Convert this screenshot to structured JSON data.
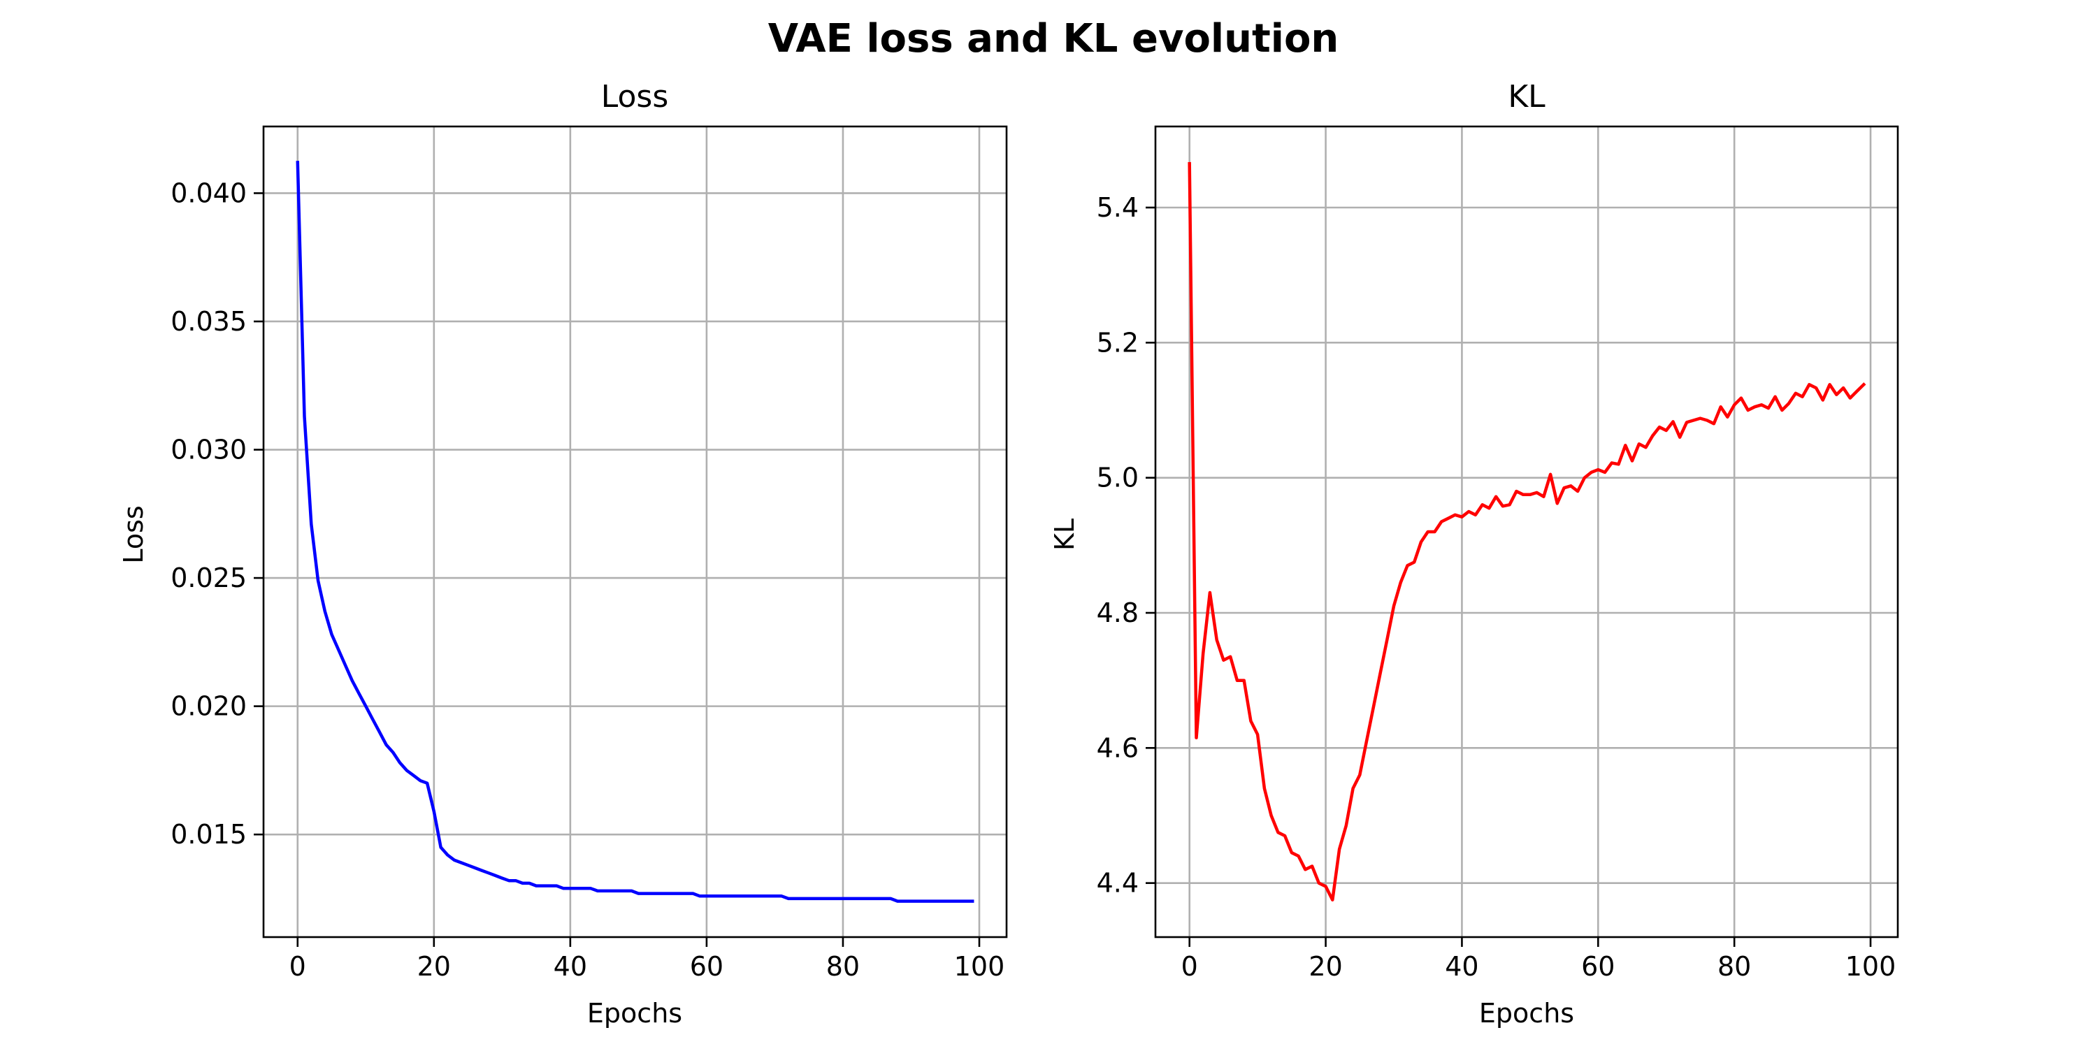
{
  "figure": {
    "suptitle": "VAE loss and KL evolution"
  },
  "chart_data": [
    {
      "type": "line",
      "title": "Loss",
      "xlabel": "Epochs",
      "ylabel": "Loss",
      "xlim": [
        -5,
        104
      ],
      "ylim": [
        0.011,
        0.0426
      ],
      "xticks": [
        0,
        20,
        40,
        60,
        80,
        100
      ],
      "yticks": [
        0.015,
        0.02,
        0.025,
        0.03,
        0.035,
        0.04
      ],
      "ytick_decimals": 3,
      "grid": true,
      "series": [
        {
          "color": "#0000ff",
          "x": [
            0,
            1,
            2,
            3,
            4,
            5,
            6,
            7,
            8,
            9,
            10,
            11,
            12,
            13,
            14,
            15,
            16,
            17,
            18,
            19,
            20,
            21,
            22,
            23,
            24,
            25,
            26,
            27,
            28,
            29,
            30,
            31,
            32,
            33,
            34,
            35,
            36,
            37,
            38,
            39,
            40,
            41,
            42,
            43,
            44,
            45,
            46,
            47,
            48,
            49,
            50,
            51,
            52,
            53,
            54,
            55,
            56,
            57,
            58,
            59,
            60,
            61,
            62,
            63,
            64,
            65,
            66,
            67,
            68,
            69,
            70,
            71,
            72,
            73,
            74,
            75,
            76,
            77,
            78,
            79,
            80,
            81,
            82,
            83,
            84,
            85,
            86,
            87,
            88,
            89,
            90,
            91,
            92,
            93,
            94,
            95,
            96,
            97,
            98,
            99
          ],
          "y": [
            0.0412,
            0.0313,
            0.0271,
            0.0249,
            0.0237,
            0.0228,
            0.0222,
            0.0216,
            0.021,
            0.0205,
            0.02,
            0.0195,
            0.019,
            0.0185,
            0.0182,
            0.0178,
            0.0175,
            0.0173,
            0.0171,
            0.017,
            0.0159,
            0.0145,
            0.0142,
            0.014,
            0.0139,
            0.0138,
            0.0137,
            0.0136,
            0.0135,
            0.0134,
            0.0133,
            0.0132,
            0.0132,
            0.0131,
            0.0131,
            0.013,
            0.013,
            0.013,
            0.013,
            0.0129,
            0.0129,
            0.0129,
            0.0129,
            0.0129,
            0.0128,
            0.0128,
            0.0128,
            0.0128,
            0.0128,
            0.0128,
            0.0127,
            0.0127,
            0.0127,
            0.0127,
            0.0127,
            0.0127,
            0.0127,
            0.0127,
            0.0127,
            0.0126,
            0.0126,
            0.0126,
            0.0126,
            0.0126,
            0.0126,
            0.0126,
            0.0126,
            0.0126,
            0.0126,
            0.0126,
            0.0126,
            0.0126,
            0.0125,
            0.0125,
            0.0125,
            0.0125,
            0.0125,
            0.0125,
            0.0125,
            0.0125,
            0.0125,
            0.0125,
            0.0125,
            0.0125,
            0.0125,
            0.0125,
            0.0125,
            0.0125,
            0.0124,
            0.0124,
            0.0124,
            0.0124,
            0.0124,
            0.0124,
            0.0124,
            0.0124,
            0.0124,
            0.0124,
            0.0124,
            0.0124
          ]
        }
      ]
    },
    {
      "type": "line",
      "title": "KL",
      "xlabel": "Epochs",
      "ylabel": "KL",
      "xlim": [
        -5,
        104
      ],
      "ylim": [
        4.32,
        5.52
      ],
      "xticks": [
        0,
        20,
        40,
        60,
        80,
        100
      ],
      "yticks": [
        4.4,
        4.6,
        4.8,
        5.0,
        5.2,
        5.4
      ],
      "ytick_decimals": 1,
      "grid": true,
      "series": [
        {
          "color": "#ff0000",
          "x": [
            0,
            1,
            2,
            3,
            4,
            5,
            6,
            7,
            8,
            9,
            10,
            11,
            12,
            13,
            14,
            15,
            16,
            17,
            18,
            19,
            20,
            21,
            22,
            23,
            24,
            25,
            26,
            27,
            28,
            29,
            30,
            31,
            32,
            33,
            34,
            35,
            36,
            37,
            38,
            39,
            40,
            41,
            42,
            43,
            44,
            45,
            46,
            47,
            48,
            49,
            50,
            51,
            52,
            53,
            54,
            55,
            56,
            57,
            58,
            59,
            60,
            61,
            62,
            63,
            64,
            65,
            66,
            67,
            68,
            69,
            70,
            71,
            72,
            73,
            74,
            75,
            76,
            77,
            78,
            79,
            80,
            81,
            82,
            83,
            84,
            85,
            86,
            87,
            88,
            89,
            90,
            91,
            92,
            93,
            94,
            95,
            96,
            97,
            98,
            99
          ],
          "y": [
            5.465,
            4.615,
            4.74,
            4.83,
            4.76,
            4.73,
            4.735,
            4.7,
            4.7,
            4.64,
            4.62,
            4.54,
            4.5,
            4.475,
            4.47,
            4.445,
            4.44,
            4.42,
            4.425,
            4.4,
            4.395,
            4.375,
            4.45,
            4.485,
            4.54,
            4.56,
            4.61,
            4.66,
            4.71,
            4.76,
            4.81,
            4.845,
            4.87,
            4.875,
            4.905,
            4.92,
            4.92,
            4.935,
            4.94,
            4.945,
            4.942,
            4.95,
            4.945,
            4.96,
            4.955,
            4.972,
            4.958,
            4.96,
            4.98,
            4.975,
            4.975,
            4.978,
            4.972,
            5.005,
            4.962,
            4.985,
            4.988,
            4.98,
            5.0,
            5.008,
            5.012,
            5.008,
            5.022,
            5.02,
            5.048,
            5.025,
            5.05,
            5.045,
            5.062,
            5.075,
            5.07,
            5.083,
            5.06,
            5.082,
            5.085,
            5.088,
            5.085,
            5.08,
            5.105,
            5.09,
            5.108,
            5.118,
            5.1,
            5.105,
            5.108,
            5.103,
            5.12,
            5.1,
            5.11,
            5.125,
            5.12,
            5.138,
            5.133,
            5.115,
            5.138,
            5.123,
            5.133,
            5.118,
            5.128,
            5.138
          ]
        }
      ]
    }
  ]
}
